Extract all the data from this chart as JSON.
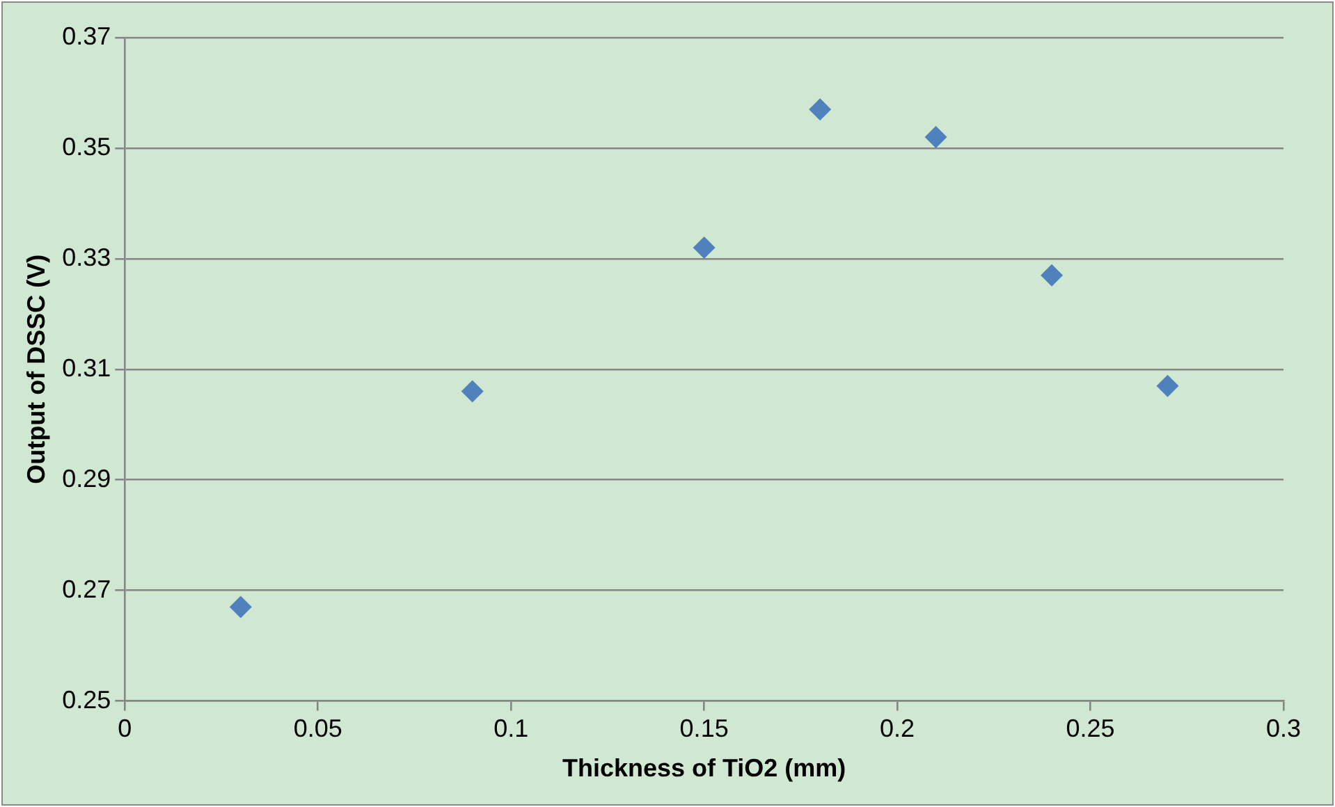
{
  "chart_data": {
    "type": "scatter",
    "xlabel": "Thickness of TiO2 (mm)",
    "ylabel": "Output of DSSC (V)",
    "x": [
      0.03,
      0.09,
      0.15,
      0.18,
      0.21,
      0.24,
      0.27
    ],
    "series": [
      {
        "color": "#4f81bd",
        "values": [
          0.267,
          0.306,
          0.332,
          0.357,
          0.352,
          0.327,
          0.307
        ]
      }
    ],
    "xlim": [
      0,
      0.3
    ],
    "xticks": [
      0,
      0.05,
      0.1,
      0.15,
      0.2,
      0.25,
      0.3
    ],
    "ylim": [
      0.25,
      0.37
    ],
    "yticks": [
      0.25,
      0.27,
      0.29,
      0.31,
      0.33,
      0.35,
      0.37
    ],
    "grid": "y",
    "legend": false,
    "marker": "diamond"
  }
}
